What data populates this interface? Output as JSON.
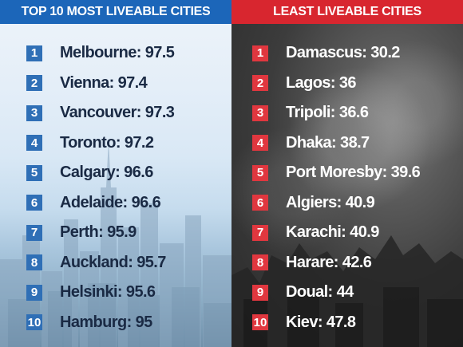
{
  "top": {
    "title": "TOP 10 MOST LIVEABLE CITIES",
    "color": "#1c66b9",
    "items": [
      {
        "rank": "1",
        "label": "Melbourne: 97.5"
      },
      {
        "rank": "2",
        "label": "Vienna: 97.4"
      },
      {
        "rank": "3",
        "label": "Vancouver: 97.3"
      },
      {
        "rank": "4",
        "label": "Toronto: 97.2"
      },
      {
        "rank": "5",
        "label": "Calgary: 96.6"
      },
      {
        "rank": "6",
        "label": "Adelaide: 96.6"
      },
      {
        "rank": "7",
        "label": "Perth: 95.9"
      },
      {
        "rank": "8",
        "label": "Auckland: 95.7"
      },
      {
        "rank": "9",
        "label": "Helsinki: 95.6"
      },
      {
        "rank": "10",
        "label": "Hamburg: 95"
      }
    ]
  },
  "least": {
    "title": "LEAST LIVEABLE CITIES",
    "color": "#d8262f",
    "items": [
      {
        "rank": "1",
        "label": "Damascus: 30.2"
      },
      {
        "rank": "2",
        "label": "Lagos: 36"
      },
      {
        "rank": "3",
        "label": "Tripoli: 36.6"
      },
      {
        "rank": "4",
        "label": "Dhaka: 38.7"
      },
      {
        "rank": "5",
        "label": "Port Moresby: 39.6"
      },
      {
        "rank": "6",
        "label": "Algiers: 40.9"
      },
      {
        "rank": "7",
        "label": "Karachi: 40.9"
      },
      {
        "rank": "8",
        "label": "Harare: 42.6"
      },
      {
        "rank": "9",
        "label": "Doual: 44"
      },
      {
        "rank": "10",
        "label": "Kiev: 47.8"
      }
    ]
  }
}
